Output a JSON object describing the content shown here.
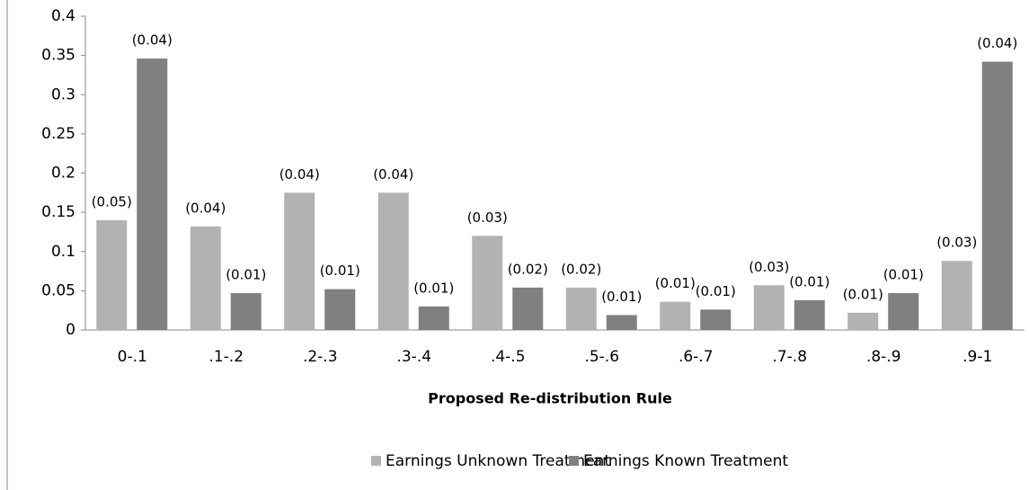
{
  "chart_data": {
    "type": "bar",
    "x_label": "Proposed Re-distribution Rule",
    "categories": [
      "0-.1",
      ".1-.2",
      ".2-.3",
      ".3-.4",
      ".4-.5",
      ".5-.6",
      ".6-.7",
      ".7-.8",
      ".8-.9",
      ".9-1"
    ],
    "series": [
      {
        "name": "Earnings Unknown Treatment",
        "color": "#b2b2b2",
        "values": [
          0.14,
          0.132,
          0.175,
          0.175,
          0.12,
          0.054,
          0.036,
          0.057,
          0.022,
          0.088
        ],
        "error_labels": [
          "(0.05)",
          "(0.04)",
          "(0.04)",
          "(0.04)",
          "(0.03)",
          "(0.02)",
          "(0.01)",
          "(0.03)",
          "(0.01)",
          "(0.03)"
        ]
      },
      {
        "name": "Earnings Known Treatment",
        "color": "#808080",
        "values": [
          0.346,
          0.047,
          0.052,
          0.03,
          0.054,
          0.019,
          0.026,
          0.038,
          0.047,
          0.342
        ],
        "error_labels": [
          "(0.04)",
          "(0.01)",
          "(0.01)",
          "(0.01)",
          "(0.02)",
          "(0.01)",
          "(0.01)",
          "(0.01)",
          "(0.01)",
          "(0.04)"
        ]
      }
    ],
    "ylim": [
      0,
      0.4
    ],
    "yticks": [
      0,
      0.05,
      0.1,
      0.15,
      0.2,
      0.25,
      0.3,
      0.35,
      0.4
    ],
    "grid": false,
    "legend": "bottom"
  }
}
